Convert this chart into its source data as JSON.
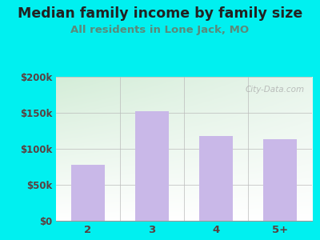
{
  "title": "Median family income by family size",
  "subtitle": "All residents in Lone Jack, MO",
  "categories": [
    "2",
    "3",
    "4",
    "5+"
  ],
  "values": [
    78000,
    152000,
    118000,
    113000
  ],
  "bar_color": "#c9b8e8",
  "ylim": [
    0,
    200000
  ],
  "yticks": [
    0,
    50000,
    100000,
    150000,
    200000
  ],
  "ytick_labels": [
    "$0",
    "$50k",
    "$100k",
    "$150k",
    "$200k"
  ],
  "outer_bg_color": "#00f0f0",
  "plot_bg_top_left": "#d4edd8",
  "plot_bg_top_right": "#e8f5eb",
  "plot_bg_bottom": "#ffffff",
  "title_color": "#222222",
  "subtitle_color": "#5a8a7a",
  "tick_color": "#5a4040",
  "watermark": "City-Data.com",
  "title_fontsize": 12.5,
  "subtitle_fontsize": 9.5,
  "bar_width": 0.52
}
